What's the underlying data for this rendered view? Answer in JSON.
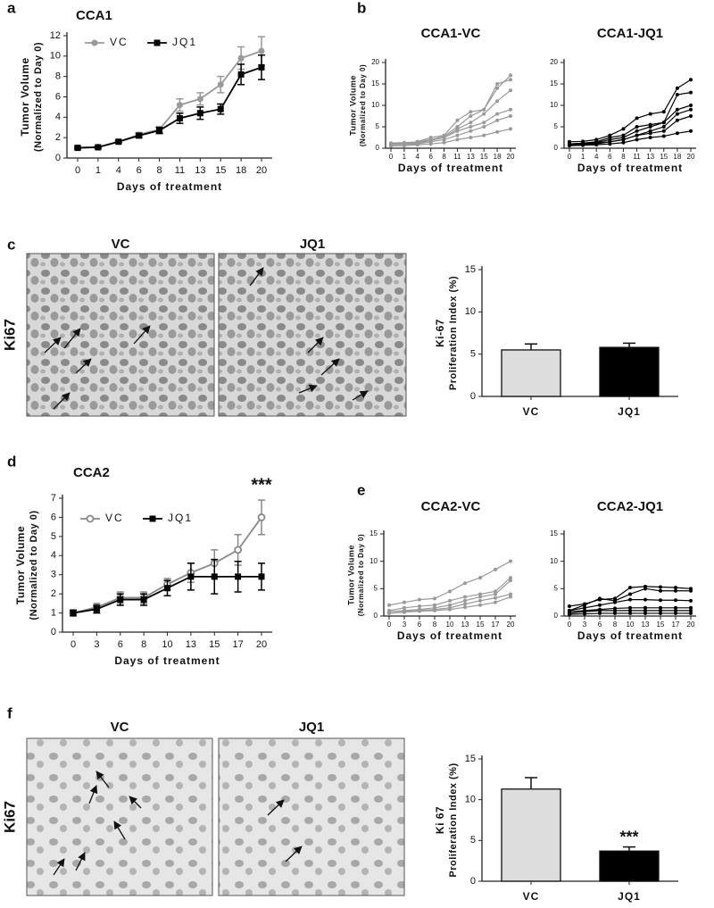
{
  "chart_data": [
    {
      "type": "line",
      "panel": "a",
      "title": "CCA1",
      "ylabel": [
        "Tumor Volume",
        "(Normalized to Day 0)"
      ],
      "xlabel": "Days of treatment",
      "categories": [
        "0",
        "1",
        "4",
        "6",
        "8",
        "11",
        "13",
        "15",
        "18",
        "20"
      ],
      "ylim": [
        0,
        12
      ],
      "yticks": [
        0,
        2,
        4,
        6,
        8,
        10,
        12
      ],
      "series": [
        {
          "name": "VC",
          "color": "#999999",
          "marker": "circle",
          "values": [
            1,
            1.1,
            1.6,
            2.3,
            2.8,
            5.2,
            5.8,
            7.2,
            9.8,
            10.5
          ],
          "errors": [
            0.1,
            0.1,
            0.1,
            0.2,
            0.3,
            0.6,
            0.6,
            0.8,
            1.1,
            1.4
          ]
        },
        {
          "name": "JQ1",
          "color": "#000000",
          "marker": "square",
          "values": [
            1,
            1.05,
            1.6,
            2.2,
            2.7,
            3.9,
            4.4,
            4.8,
            8.2,
            8.9
          ],
          "errors": [
            0.1,
            0.1,
            0.1,
            0.2,
            0.3,
            0.5,
            0.6,
            0.5,
            1.0,
            1.2
          ]
        }
      ]
    },
    {
      "type": "line",
      "panel": "b",
      "title": "CCA1-VC",
      "ylabel": [
        "Tumor Volume",
        "(Normalized to Day 0)"
      ],
      "xlabel": "Days of treatment",
      "categories": [
        "0",
        "1",
        "4",
        "6",
        "8",
        "11",
        "13",
        "15",
        "18",
        "20"
      ],
      "ylim": [
        0,
        20
      ],
      "yticks": [
        0,
        5,
        10,
        15,
        20
      ],
      "series": [
        {
          "color": "#999999",
          "values": [
            1,
            1,
            1.3,
            2,
            2.8,
            5,
            7.5,
            9,
            14,
            17
          ]
        },
        {
          "color": "#999999",
          "values": [
            1,
            1.1,
            1.5,
            2.5,
            3,
            6.5,
            8.5,
            9,
            15,
            16
          ]
        },
        {
          "color": "#999999",
          "values": [
            0.8,
            1,
            1.2,
            1.8,
            2.5,
            4.5,
            6,
            8,
            11,
            13.5
          ]
        },
        {
          "color": "#999999",
          "values": [
            1.2,
            1.3,
            1.5,
            2,
            2.5,
            4,
            5,
            6,
            8,
            9
          ]
        },
        {
          "color": "#999999",
          "values": [
            0.8,
            0.9,
            1,
            1.5,
            2,
            3,
            4,
            5,
            6.5,
            7.5
          ]
        },
        {
          "color": "#999999",
          "values": [
            0.5,
            0.6,
            0.8,
            1,
            1.3,
            2,
            2.5,
            3,
            3.8,
            4.5
          ]
        }
      ]
    },
    {
      "type": "line",
      "title": "CCA1-JQ1",
      "xlabel": "Days of treatment",
      "categories": [
        "0",
        "1",
        "4",
        "6",
        "8",
        "11",
        "13",
        "15",
        "18",
        "20"
      ],
      "ylim": [
        0,
        20
      ],
      "yticks": [
        0,
        5,
        10,
        15,
        20
      ],
      "series": [
        {
          "color": "#000000",
          "values": [
            1.5,
            1.6,
            2,
            3,
            4.5,
            7,
            8,
            8.5,
            14,
            16
          ]
        },
        {
          "color": "#000000",
          "values": [
            1,
            1.2,
            1.5,
            2.5,
            3,
            5,
            5.5,
            6,
            12.5,
            13
          ]
        },
        {
          "color": "#000000",
          "values": [
            1,
            1.1,
            1.3,
            2,
            2.5,
            4,
            5,
            6,
            9,
            10
          ]
        },
        {
          "color": "#000000",
          "values": [
            0.8,
            0.9,
            1,
            1.5,
            2,
            3,
            4,
            5,
            8,
            9
          ]
        },
        {
          "color": "#000000",
          "values": [
            1,
            1,
            1.2,
            1.5,
            2,
            3,
            3.5,
            4,
            6.5,
            7.5
          ]
        },
        {
          "color": "#000000",
          "values": [
            0.6,
            0.7,
            0.8,
            1,
            1.3,
            2,
            2.5,
            2.8,
            3.5,
            4
          ]
        }
      ]
    },
    {
      "type": "bar",
      "ylabel": [
        "Ki-67",
        "Proliferation Index (%)"
      ],
      "categories": [
        "VC",
        "JQ1"
      ],
      "values": [
        5.5,
        5.8
      ],
      "errors": [
        0.7,
        0.5
      ],
      "colors": [
        "#dddddd",
        "#000000"
      ],
      "ylim": [
        0,
        15
      ],
      "yticks": [
        0,
        5,
        10,
        15
      ]
    },
    {
      "type": "line",
      "panel": "d",
      "title": "CCA2",
      "ylabel": [
        "Tumor Volume",
        "(Normalized to Day 0)"
      ],
      "xlabel": "Days of treatment",
      "annotation": "***",
      "categories": [
        "0",
        "3",
        "6",
        "8",
        "10",
        "13",
        "15",
        "17",
        "20"
      ],
      "ylim": [
        0,
        7
      ],
      "yticks": [
        0,
        1,
        2,
        3,
        4,
        5,
        6,
        7
      ],
      "series": [
        {
          "name": "VC",
          "color": "#888888",
          "marker": "ring",
          "values": [
            1,
            1.3,
            1.8,
            1.8,
            2.5,
            3.1,
            3.6,
            4.3,
            6.0
          ],
          "errors": [
            0.15,
            0.2,
            0.3,
            0.3,
            0.3,
            0.5,
            0.7,
            0.8,
            0.9
          ]
        },
        {
          "name": "JQ1",
          "color": "#000000",
          "marker": "square",
          "values": [
            1,
            1.2,
            1.7,
            1.7,
            2.3,
            2.9,
            2.9,
            2.9,
            2.9
          ],
          "errors": [
            0.15,
            0.2,
            0.3,
            0.3,
            0.4,
            0.7,
            0.9,
            0.8,
            0.7
          ]
        }
      ]
    },
    {
      "type": "line",
      "panel": "e",
      "title": "CCA2-VC",
      "ylabel": [
        "Tumor Volume",
        "(Normalized to Day 0)"
      ],
      "xlabel": "Days of treatment",
      "categories": [
        "0",
        "3",
        "6",
        "8",
        "10",
        "13",
        "15",
        "17",
        "20"
      ],
      "ylim": [
        0,
        15
      ],
      "yticks": [
        0,
        5,
        10,
        15
      ],
      "series": [
        {
          "color": "#999999",
          "values": [
            2,
            2.5,
            3,
            3.2,
            4.5,
            6,
            7,
            8.5,
            10
          ]
        },
        {
          "color": "#999999",
          "values": [
            1,
            1.5,
            1.8,
            2,
            2.8,
            3.5,
            4,
            4.5,
            7
          ]
        },
        {
          "color": "#999999",
          "values": [
            0.8,
            1,
            1.2,
            1.5,
            2,
            2.8,
            3.5,
            4,
            6.5
          ]
        },
        {
          "color": "#999999",
          "values": [
            0.5,
            0.8,
            1,
            1.2,
            1.5,
            2.2,
            2.8,
            3.3,
            4
          ]
        },
        {
          "color": "#999999",
          "values": [
            0.5,
            0.7,
            0.9,
            1,
            1.2,
            1.6,
            2,
            2.5,
            3.5
          ]
        }
      ]
    },
    {
      "type": "line",
      "title": "CCA2-JQ1",
      "xlabel": "Days of treatment",
      "categories": [
        "0",
        "3",
        "6",
        "8",
        "10",
        "13",
        "15",
        "17",
        "20"
      ],
      "ylim": [
        0,
        15
      ],
      "yticks": [
        0,
        5,
        10,
        15
      ],
      "series": [
        {
          "color": "#000000",
          "values": [
            1.8,
            2.2,
            3,
            3.2,
            5.2,
            5.4,
            5.3,
            5.2,
            5
          ]
        },
        {
          "color": "#000000",
          "values": [
            1,
            2,
            3.2,
            2.8,
            4,
            5,
            4.6,
            4.6,
            4.6
          ]
        },
        {
          "color": "#000000",
          "values": [
            1,
            1.5,
            2,
            2.5,
            3,
            3,
            2.9,
            2.9,
            2.8
          ]
        },
        {
          "color": "#000000",
          "values": [
            0.8,
            1,
            1.2,
            1.4,
            1.5,
            1.5,
            1.5,
            1.5,
            1.5
          ]
        },
        {
          "color": "#000000",
          "values": [
            0.5,
            0.8,
            1,
            1,
            1,
            1,
            1,
            1,
            1
          ]
        },
        {
          "color": "#000000",
          "values": [
            0.3,
            0.4,
            0.5,
            0.5,
            0.5,
            0.5,
            0.5,
            0.5,
            0.5
          ]
        }
      ]
    },
    {
      "type": "bar",
      "ylabel": [
        "Ki 67",
        "Proliferation Index (%)"
      ],
      "annotation": "***",
      "categories": [
        "VC",
        "JQ1"
      ],
      "values": [
        11.3,
        3.7
      ],
      "errors": [
        1.4,
        0.5
      ],
      "colors": [
        "#dddddd",
        "#000000"
      ],
      "ylim": [
        0,
        15
      ],
      "yticks": [
        0,
        5,
        10,
        15
      ]
    }
  ],
  "images": [
    {
      "panel": "c",
      "row_label": "Ki67",
      "labels": [
        "VC",
        "JQ1"
      ]
    },
    {
      "panel": "f",
      "row_label": "Ki67",
      "labels": [
        "VC",
        "JQ1"
      ]
    }
  ]
}
